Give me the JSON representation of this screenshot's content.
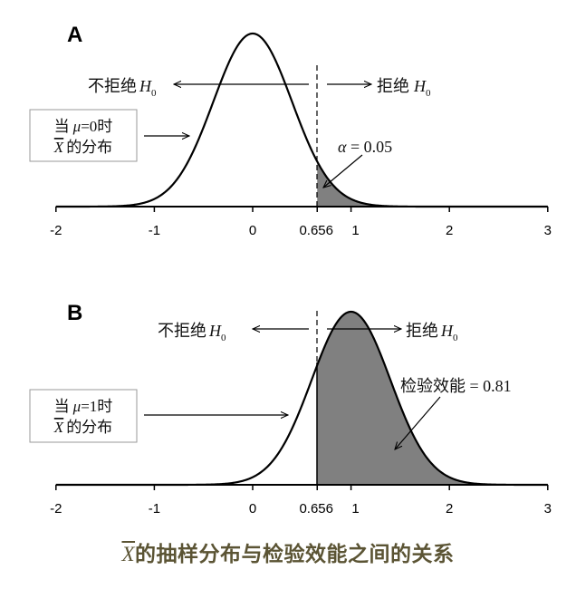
{
  "caption": {
    "xbar_symbol": "X",
    "text": "的抽样分布与检验效能之间的关系"
  },
  "colors": {
    "shade": "#808080",
    "curve": "#000000",
    "caption": "#5b5434"
  },
  "panels": [
    {
      "label": "A",
      "mean": 0,
      "box": {
        "line1_prefix": "当",
        "mu": "μ",
        "line1_suffix": "=0时",
        "xbar": "X",
        "line2": "的分布"
      },
      "left_region": {
        "text": "不拒绝",
        "h": "H",
        "sub": "0"
      },
      "right_region": {
        "text": "拒绝",
        "h": "H",
        "sub": "0"
      },
      "annotation": {
        "symbol": "α",
        "text": " = 0.05"
      }
    },
    {
      "label": "B",
      "mean": 1,
      "box": {
        "line1_prefix": "当",
        "mu": "μ",
        "line1_suffix": "=1时",
        "xbar": "X",
        "line2": "的分布"
      },
      "left_region": {
        "text": "不拒绝",
        "h": "H",
        "sub": "0"
      },
      "right_region": {
        "text": "拒绝",
        "h": "H",
        "sub": "0"
      },
      "annotation": {
        "symbol": "",
        "text": "检验效能  = 0.81"
      }
    }
  ],
  "axis": {
    "ticks": [
      "-2",
      "-1",
      "0",
      "0.656",
      "1",
      "2",
      "3"
    ],
    "tick_values": [
      -2,
      -1,
      0,
      0.656,
      1,
      2,
      3
    ],
    "xlim": [
      -2,
      3
    ]
  },
  "chart_data": {
    "type": "area",
    "title": "X̄的抽样分布与检验效能之间的关系",
    "xlabel": "",
    "ylabel": "",
    "xlim": [
      -2,
      3
    ],
    "critical_value": 0.656,
    "series": [
      {
        "name": "A: 当μ=0时 X̄的分布",
        "distribution": "normal",
        "mean": 0,
        "sd": 0.4,
        "shaded_region": "x > 0.656",
        "shaded_area": 0.05,
        "annotation": "α = 0.05"
      },
      {
        "name": "B: 当μ=1时 X̄的分布",
        "distribution": "normal",
        "mean": 1,
        "sd": 0.4,
        "shaded_region": "x > 0.656",
        "shaded_area": 0.81,
        "annotation": "检验效能 = 0.81"
      }
    ],
    "annotations": [
      "不拒绝 H0 (x < 0.656)",
      "拒绝 H0 (x > 0.656)"
    ],
    "grid": false
  }
}
